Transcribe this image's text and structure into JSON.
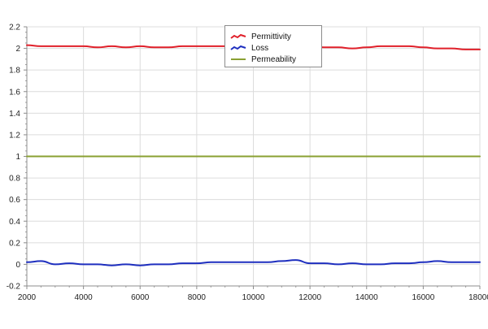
{
  "chart_data": {
    "type": "line",
    "xlim": [
      2000,
      18000
    ],
    "ylim": [
      -0.2,
      2.2
    ],
    "x_ticks": [
      2000,
      4000,
      6000,
      8000,
      10000,
      12000,
      14000,
      16000,
      18000
    ],
    "y_ticks": [
      -0.2,
      0,
      0.2,
      0.4,
      0.6,
      0.8,
      1,
      1.2,
      1.4,
      1.6,
      1.8,
      2,
      2.2
    ],
    "grid": true,
    "legend_position": "top-center",
    "series": [
      {
        "name": "Permittivity",
        "color": "#e0202a",
        "x": [
          2000,
          2500,
          3000,
          3500,
          4000,
          4500,
          5000,
          5500,
          6000,
          6500,
          7000,
          7500,
          8000,
          8500,
          9000,
          9500,
          10000,
          10500,
          11000,
          11500,
          12000,
          12500,
          13000,
          13500,
          14000,
          14500,
          15000,
          15500,
          16000,
          16500,
          17000,
          17500,
          18000
        ],
        "values": [
          2.03,
          2.02,
          2.02,
          2.02,
          2.02,
          2.01,
          2.02,
          2.01,
          2.02,
          2.01,
          2.01,
          2.02,
          2.02,
          2.02,
          2.02,
          2.01,
          2.02,
          2.02,
          2.01,
          2.02,
          2.02,
          2.01,
          2.01,
          2.0,
          2.01,
          2.02,
          2.02,
          2.02,
          2.01,
          2.0,
          2.0,
          1.99,
          1.99
        ]
      },
      {
        "name": "Loss",
        "color": "#1e2fbf",
        "x": [
          2000,
          2500,
          3000,
          3500,
          4000,
          4500,
          5000,
          5500,
          6000,
          6500,
          7000,
          7500,
          8000,
          8500,
          9000,
          9500,
          10000,
          10500,
          11000,
          11500,
          12000,
          12500,
          13000,
          13500,
          14000,
          14500,
          15000,
          15500,
          16000,
          16500,
          17000,
          17500,
          18000
        ],
        "values": [
          0.02,
          0.03,
          0.0,
          0.01,
          0.0,
          0.0,
          -0.01,
          0.0,
          -0.01,
          0.0,
          0.0,
          0.01,
          0.01,
          0.02,
          0.02,
          0.02,
          0.02,
          0.02,
          0.03,
          0.04,
          0.01,
          0.01,
          0.0,
          0.01,
          0.0,
          0.0,
          0.01,
          0.01,
          0.02,
          0.03,
          0.02,
          0.02,
          0.02
        ]
      },
      {
        "name": "Permeability",
        "color": "#8aa032",
        "x": [
          2000,
          18000
        ],
        "values": [
          1,
          1
        ]
      }
    ]
  }
}
